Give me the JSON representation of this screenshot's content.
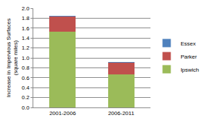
{
  "chart_data": {
    "type": "bar",
    "categories": [
      "2001-2006",
      "2006-2011"
    ],
    "series": [
      {
        "name": "Ipswich",
        "color": "#9bbb59",
        "values": [
          1.53,
          0.66
        ]
      },
      {
        "name": "Parker",
        "color": "#c0504d",
        "values": [
          0.3,
          0.24
        ]
      },
      {
        "name": "Essex",
        "color": "#4f81bd",
        "values": [
          0.02,
          0.01
        ]
      }
    ],
    "y_label": "Increase in Impervious Surfaces\n(square miles)",
    "ylim": [
      0,
      2.0
    ],
    "yticks": [
      {
        "value": 0,
        "label": "0.0"
      },
      0.2,
      0.4,
      0.6,
      0.8,
      {
        "value": 1.0,
        "label": "1.0"
      },
      1.2,
      1.4,
      1.6,
      1.8,
      {
        "value": 2.0,
        "label": "2.0"
      }
    ],
    "stacked": true,
    "grid": true,
    "legend": "right"
  }
}
